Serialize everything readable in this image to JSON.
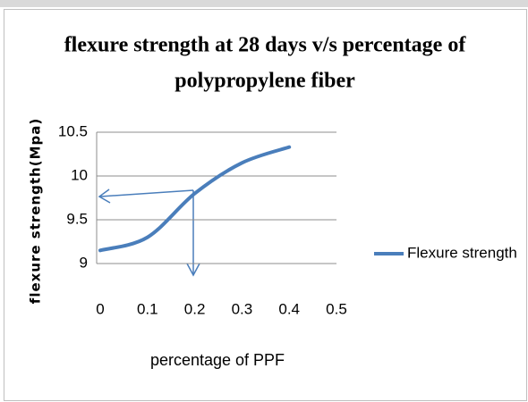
{
  "chart_data": {
    "type": "line",
    "title": [
      "flexure strength at 28 days v/s percentage of",
      "polypropylene fiber"
    ],
    "x_label": "percentage of PPF",
    "y_label": "flexure  strength(Mpa)",
    "x": [
      0,
      0.1,
      0.2,
      0.3,
      0.4
    ],
    "series": [
      {
        "name": "Flexure strength",
        "color": "#4a7ebb",
        "values": [
          9.15,
          9.3,
          9.8,
          10.15,
          10.33
        ]
      }
    ],
    "xlim": [
      0,
      0.5
    ],
    "xticks": [
      0,
      0.1,
      0.2,
      0.3,
      0.4,
      0.5
    ],
    "ylim": [
      9,
      10.5
    ],
    "yticks": [
      9,
      9.5,
      10,
      10.5
    ],
    "grid": true,
    "legend": "right"
  }
}
